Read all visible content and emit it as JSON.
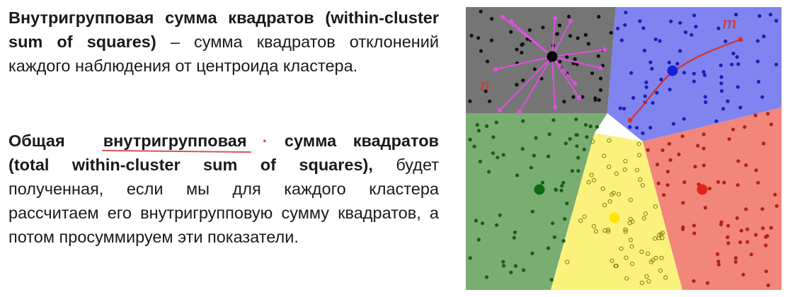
{
  "text": {
    "p1_bold": "Внутригрупповая сумма квадратов (within-cluster sum of squares)",
    "p1_rest": " – сумма квадратов отклонений каждого наблюдения от центроида кластера.",
    "p2_bold_a": "Общая",
    "p2_bold_b": "внутригрупповая",
    "p2_mark": "·",
    "p2_bold_c": "сумма квадратов (total within-cluster sum of squares),",
    "p2_rest": " будет полученная, если мы для каждого кластера рассчитаем его внутригрупповую сумму квадратов, а потом просуммируем эти показатели."
  },
  "figure": {
    "annotations": [
      "n",
      "m"
    ],
    "colors": {
      "gray": "#757575",
      "blue": "#7f84f0",
      "green": "#79ad72",
      "yellow": "#fbf27c",
      "red": "#f2867a",
      "magenta": "#e04fe0",
      "pen_red": "#d9302a"
    }
  }
}
